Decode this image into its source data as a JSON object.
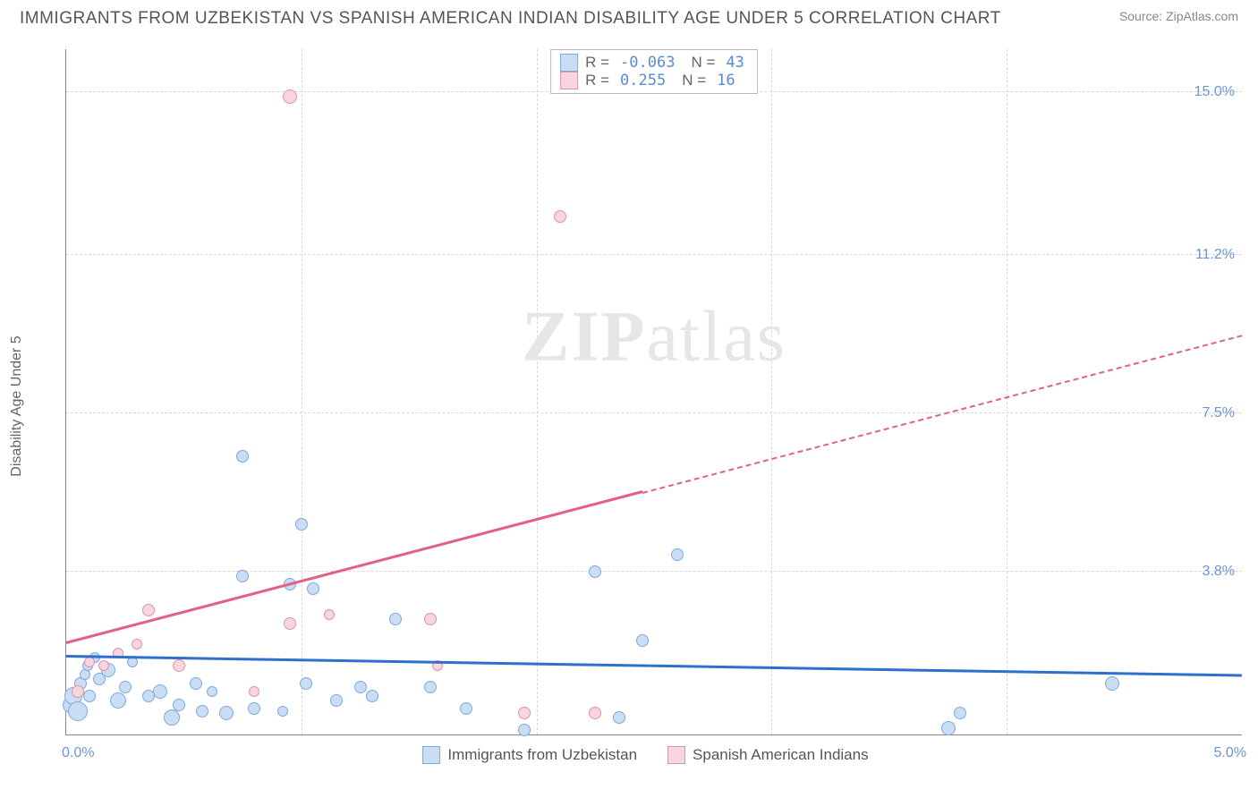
{
  "header": {
    "title": "IMMIGRANTS FROM UZBEKISTAN VS SPANISH AMERICAN INDIAN DISABILITY AGE UNDER 5 CORRELATION CHART",
    "source": "Source: ZipAtlas.com"
  },
  "ylabel": "Disability Age Under 5",
  "watermark": {
    "bold": "ZIP",
    "thin": "atlas"
  },
  "chart": {
    "type": "scatter",
    "xlim": [
      0.0,
      5.0
    ],
    "ylim": [
      0.0,
      16.0
    ],
    "background_color": "#ffffff",
    "grid_color": "#d8d8d8",
    "axis_color": "#888888",
    "tick_label_color": "#6f94d6",
    "y_ticks": [
      {
        "value": 3.8,
        "label": "3.8%"
      },
      {
        "value": 7.5,
        "label": "7.5%"
      },
      {
        "value": 11.2,
        "label": "11.2%"
      },
      {
        "value": 15.0,
        "label": "15.0%"
      }
    ],
    "x_ticks_lines": [
      1.0,
      2.0,
      3.0,
      4.0
    ],
    "x_min_label": "0.0%",
    "x_max_label": "5.0%",
    "series": [
      {
        "name": "Immigrants from Uzbekistan",
        "marker_fill": "#c9ddf5",
        "marker_stroke": "#7fa8dc",
        "marker_size_range": [
          10,
          24
        ],
        "trend_color": "#2f6fd0",
        "trend": {
          "y_at_x0": 1.8,
          "y_at_x5": 1.35,
          "solid_until_x": 5.0
        },
        "stats": {
          "R": "-0.063",
          "N": "43"
        },
        "points": [
          {
            "x": 0.02,
            "y": 0.7,
            "s": 18
          },
          {
            "x": 0.03,
            "y": 0.9,
            "s": 20
          },
          {
            "x": 0.05,
            "y": 0.55,
            "s": 22
          },
          {
            "x": 0.06,
            "y": 1.2,
            "s": 14
          },
          {
            "x": 0.08,
            "y": 1.4,
            "s": 12
          },
          {
            "x": 0.09,
            "y": 1.6,
            "s": 12
          },
          {
            "x": 0.1,
            "y": 0.9,
            "s": 14
          },
          {
            "x": 0.12,
            "y": 1.8,
            "s": 12
          },
          {
            "x": 0.14,
            "y": 1.3,
            "s": 14
          },
          {
            "x": 0.18,
            "y": 1.5,
            "s": 16
          },
          {
            "x": 0.22,
            "y": 0.8,
            "s": 18
          },
          {
            "x": 0.25,
            "y": 1.1,
            "s": 14
          },
          {
            "x": 0.28,
            "y": 1.7,
            "s": 12
          },
          {
            "x": 0.35,
            "y": 0.9,
            "s": 14
          },
          {
            "x": 0.4,
            "y": 1.0,
            "s": 16
          },
          {
            "x": 0.45,
            "y": 0.4,
            "s": 18
          },
          {
            "x": 0.48,
            "y": 0.7,
            "s": 14
          },
          {
            "x": 0.55,
            "y": 1.2,
            "s": 14
          },
          {
            "x": 0.58,
            "y": 0.55,
            "s": 14
          },
          {
            "x": 0.62,
            "y": 1.0,
            "s": 12
          },
          {
            "x": 0.68,
            "y": 0.5,
            "s": 16
          },
          {
            "x": 0.75,
            "y": 6.5,
            "s": 14
          },
          {
            "x": 0.75,
            "y": 3.7,
            "s": 14
          },
          {
            "x": 0.8,
            "y": 0.6,
            "s": 14
          },
          {
            "x": 0.92,
            "y": 0.55,
            "s": 12
          },
          {
            "x": 0.95,
            "y": 3.5,
            "s": 14
          },
          {
            "x": 1.0,
            "y": 4.9,
            "s": 14
          },
          {
            "x": 1.02,
            "y": 1.2,
            "s": 14
          },
          {
            "x": 1.05,
            "y": 3.4,
            "s": 14
          },
          {
            "x": 1.15,
            "y": 0.8,
            "s": 14
          },
          {
            "x": 1.25,
            "y": 1.1,
            "s": 14
          },
          {
            "x": 1.3,
            "y": 0.9,
            "s": 14
          },
          {
            "x": 1.4,
            "y": 2.7,
            "s": 14
          },
          {
            "x": 1.55,
            "y": 1.1,
            "s": 14
          },
          {
            "x": 1.7,
            "y": 0.6,
            "s": 14
          },
          {
            "x": 1.95,
            "y": 0.1,
            "s": 14
          },
          {
            "x": 2.25,
            "y": 3.8,
            "s": 14
          },
          {
            "x": 2.35,
            "y": 0.4,
            "s": 14
          },
          {
            "x": 2.45,
            "y": 2.2,
            "s": 14
          },
          {
            "x": 3.75,
            "y": 0.15,
            "s": 16
          },
          {
            "x": 3.8,
            "y": 0.5,
            "s": 14
          },
          {
            "x": 4.45,
            "y": 1.2,
            "s": 16
          },
          {
            "x": 2.6,
            "y": 4.2,
            "s": 14
          }
        ]
      },
      {
        "name": "Spanish American Indians",
        "marker_fill": "#f8d6e0",
        "marker_stroke": "#e091ab",
        "marker_size_range": [
          10,
          20
        ],
        "trend_color": "#e26088",
        "trend": {
          "y_at_x0": 2.1,
          "y_at_x5": 9.3,
          "solid_until_x": 2.45
        },
        "stats": {
          "R": "0.255",
          "N": "16"
        },
        "points": [
          {
            "x": 0.05,
            "y": 1.0,
            "s": 14
          },
          {
            "x": 0.1,
            "y": 1.7,
            "s": 12
          },
          {
            "x": 0.16,
            "y": 1.6,
            "s": 12
          },
          {
            "x": 0.22,
            "y": 1.9,
            "s": 12
          },
          {
            "x": 0.3,
            "y": 2.1,
            "s": 12
          },
          {
            "x": 0.35,
            "y": 2.9,
            "s": 14
          },
          {
            "x": 0.48,
            "y": 1.6,
            "s": 14
          },
          {
            "x": 0.8,
            "y": 1.0,
            "s": 12
          },
          {
            "x": 0.95,
            "y": 2.6,
            "s": 14
          },
          {
            "x": 0.95,
            "y": 14.9,
            "s": 16
          },
          {
            "x": 1.12,
            "y": 2.8,
            "s": 12
          },
          {
            "x": 1.55,
            "y": 2.7,
            "s": 14
          },
          {
            "x": 1.58,
            "y": 1.6,
            "s": 12
          },
          {
            "x": 1.95,
            "y": 0.5,
            "s": 14
          },
          {
            "x": 2.1,
            "y": 12.1,
            "s": 14
          },
          {
            "x": 2.25,
            "y": 0.5,
            "s": 14
          }
        ]
      }
    ]
  },
  "legend_top": {
    "r_label": "R =",
    "n_label": "N ="
  },
  "legend_bottom": [
    {
      "label": "Immigrants from Uzbekistan",
      "fill": "#c9ddf5",
      "stroke": "#7fa8dc"
    },
    {
      "label": "Spanish American Indians",
      "fill": "#f8d6e0",
      "stroke": "#e091ab"
    }
  ]
}
